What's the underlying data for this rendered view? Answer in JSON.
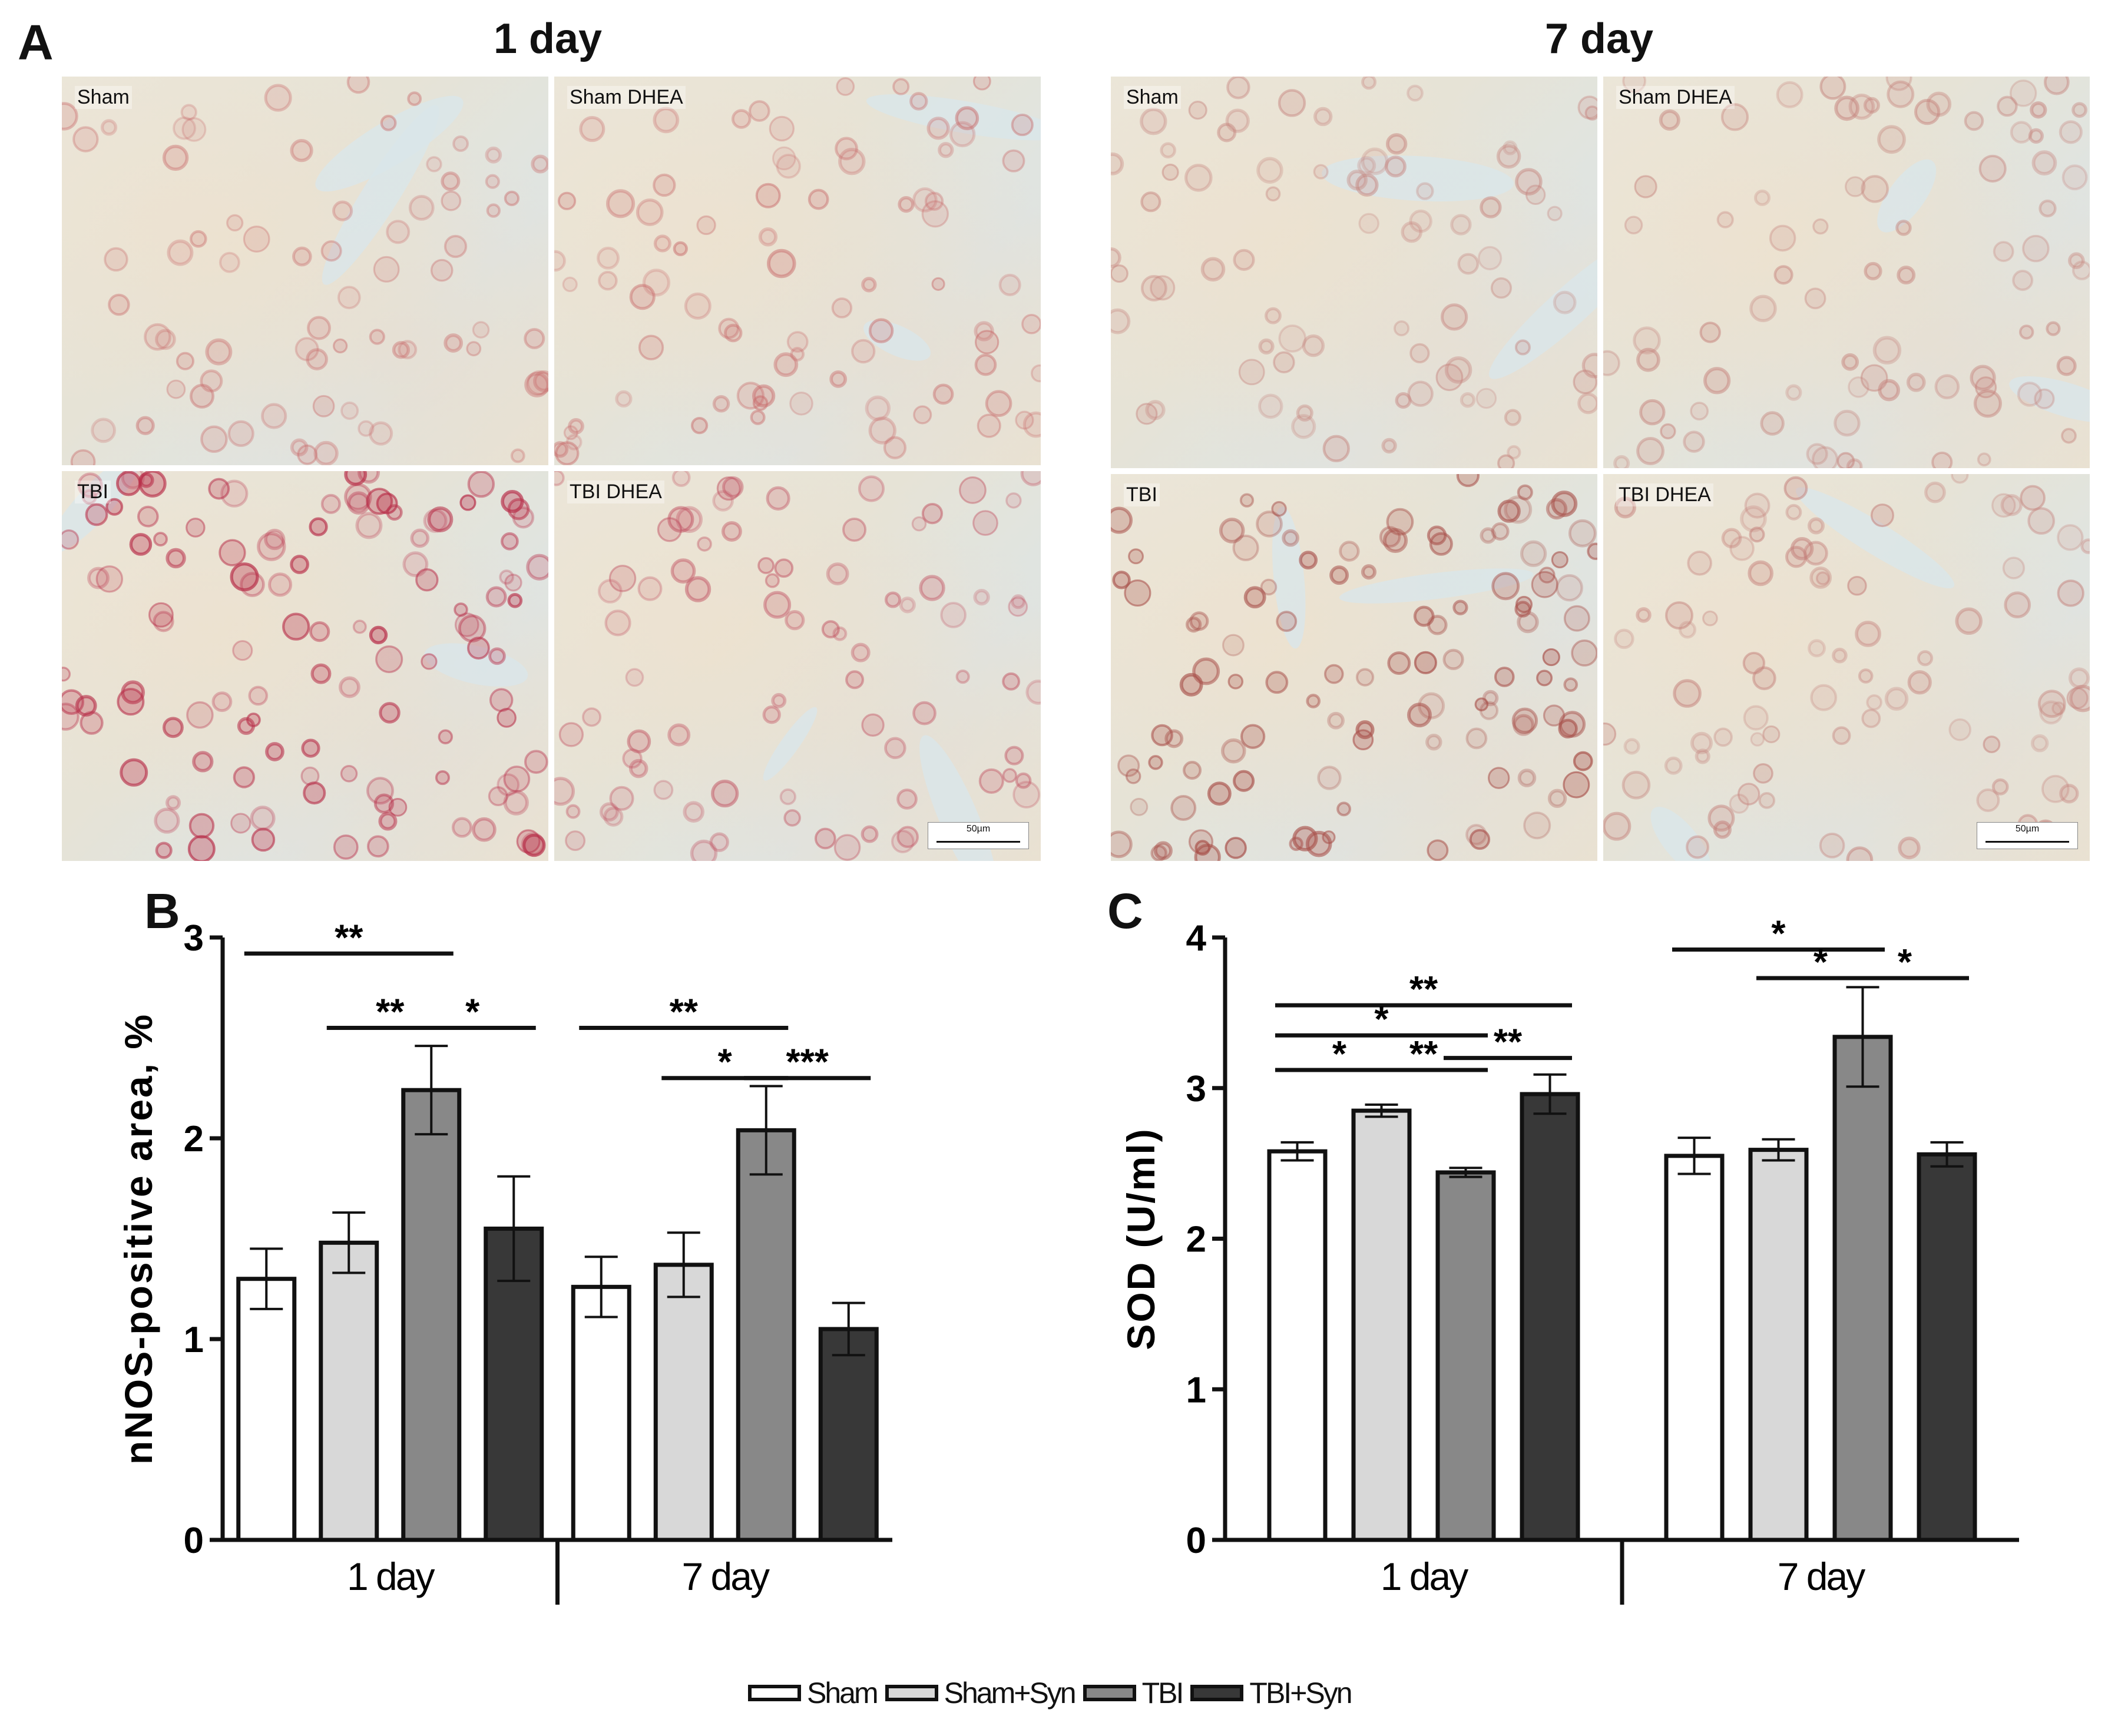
{
  "panels": {
    "a_letter": "A",
    "b_letter": "B",
    "c_letter": "C"
  },
  "micrographs": {
    "groups": [
      {
        "title": "1 day",
        "images": [
          {
            "label": "Sham",
            "tint": "#c86a6a",
            "density": 0.35
          },
          {
            "label": "Sham DHEA",
            "tint": "#c86a6a",
            "density": 0.45
          },
          {
            "label": "TBI",
            "tint": "#b8304a",
            "density": 0.85
          },
          {
            "label": "TBI DHEA",
            "tint": "#c05060",
            "density": 0.45
          }
        ],
        "scalebar": "50µm"
      },
      {
        "title": "7 day",
        "images": [
          {
            "label": "Sham",
            "tint": "#c4807a",
            "density": 0.4
          },
          {
            "label": "Sham DHEA",
            "tint": "#c4807a",
            "density": 0.45
          },
          {
            "label": "TBI",
            "tint": "#a8504a",
            "density": 0.8
          },
          {
            "label": "TBI DHEA",
            "tint": "#c4807a",
            "density": 0.5
          }
        ],
        "scalebar": "50µm"
      }
    ]
  },
  "legend": {
    "items": [
      {
        "label": "Sham",
        "color": "#ffffff"
      },
      {
        "label": "Sham+Syn",
        "color": "#d8d8d8"
      },
      {
        "label": "TBI",
        "color": "#888888"
      },
      {
        "label": "TBI+Syn",
        "color": "#383838"
      }
    ]
  },
  "chart_data": [
    {
      "type": "bar",
      "panel": "B",
      "ylabel": "nNOS-positive area, %",
      "ylim": [
        0,
        3
      ],
      "yticks": [
        "0",
        "1",
        "2",
        "3"
      ],
      "categories": [
        "1 day",
        "7 day"
      ],
      "series": [
        {
          "name": "Sham",
          "values": [
            1.3,
            1.26
          ],
          "errors": [
            0.15,
            0.15
          ]
        },
        {
          "name": "Sham+Syn",
          "values": [
            1.48,
            1.37
          ],
          "errors": [
            0.15,
            0.16
          ]
        },
        {
          "name": "TBI",
          "values": [
            2.24,
            2.04
          ],
          "errors": [
            0.22,
            0.22
          ]
        },
        {
          "name": "TBI+Syn",
          "values": [
            1.55,
            1.05
          ],
          "errors": [
            0.26,
            0.13
          ]
        }
      ],
      "significance": [
        {
          "category": 0,
          "from": 0,
          "to": 2,
          "label": "**",
          "level": 2.92
        },
        {
          "category": 0,
          "from": 1,
          "to": 2,
          "label": "**",
          "level": 2.55
        },
        {
          "category": 0,
          "from": 2,
          "to": 3,
          "label": "*",
          "level": 2.55
        },
        {
          "category": 1,
          "from": 0,
          "to": 2,
          "label": "**",
          "level": 2.55
        },
        {
          "category": 1,
          "from": 1,
          "to": 2,
          "label": "*",
          "level": 2.3
        },
        {
          "category": 1,
          "from": 2,
          "to": 3,
          "label": "***",
          "level": 2.3
        }
      ],
      "colors": [
        "#ffffff",
        "#d8d8d8",
        "#888888",
        "#383838"
      ]
    },
    {
      "type": "bar",
      "panel": "C",
      "ylabel": "SOD (U/ml)",
      "ylim": [
        0,
        4
      ],
      "yticks": [
        "0",
        "1",
        "2",
        "3",
        "4"
      ],
      "categories": [
        "1 day",
        "7 day"
      ],
      "series": [
        {
          "name": "Sham",
          "values": [
            2.58,
            2.55
          ],
          "errors": [
            0.06,
            0.12
          ]
        },
        {
          "name": "Sham+Syn",
          "values": [
            2.85,
            2.59
          ],
          "errors": [
            0.04,
            0.07
          ]
        },
        {
          "name": "TBI",
          "values": [
            2.44,
            3.34
          ],
          "errors": [
            0.03,
            0.33
          ]
        },
        {
          "name": "TBI+Syn",
          "values": [
            2.96,
            2.56
          ],
          "errors": [
            0.13,
            0.08
          ]
        }
      ],
      "significance": [
        {
          "category": 0,
          "from": 0,
          "to": 3,
          "label": "**",
          "level": 3.55
        },
        {
          "category": 0,
          "from": 0,
          "to": 2,
          "label": "*",
          "level": 3.35
        },
        {
          "category": 0,
          "from": 0,
          "to": 1,
          "label": "*",
          "level": 3.12
        },
        {
          "category": 0,
          "from": 1,
          "to": 2,
          "label": "**",
          "level": 3.12
        },
        {
          "category": 0,
          "from": 2,
          "to": 3,
          "label": "**",
          "level": 3.2
        },
        {
          "category": 1,
          "from": 0,
          "to": 2,
          "label": "*",
          "level": 3.92
        },
        {
          "category": 1,
          "from": 1,
          "to": 2,
          "label": "*",
          "level": 3.73
        },
        {
          "category": 1,
          "from": 2,
          "to": 3,
          "label": "*",
          "level": 3.73
        }
      ],
      "colors": [
        "#ffffff",
        "#d8d8d8",
        "#888888",
        "#383838"
      ]
    }
  ]
}
